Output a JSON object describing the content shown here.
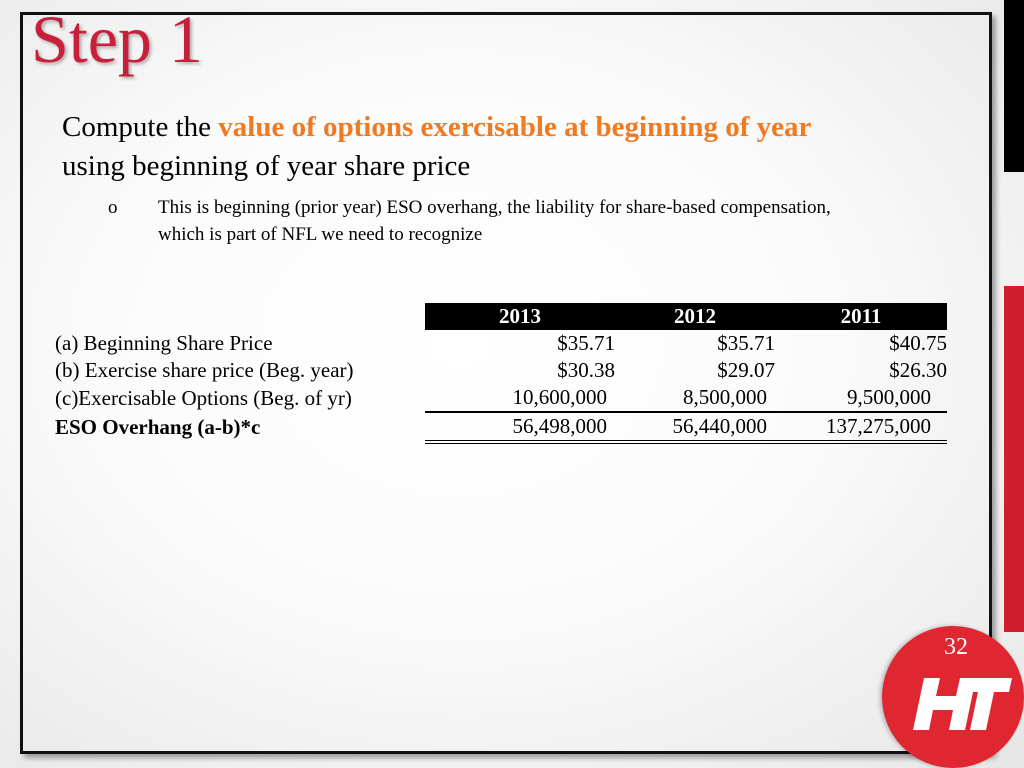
{
  "slide": {
    "title": "Step 1",
    "lead_before": "Compute the ",
    "lead_highlight": "value of options exercisable at beginning of year",
    "lead_after": "using beginning of year share price",
    "bullet_marker": "o",
    "bullet_text": "This is beginning (prior year) ESO overhang, the liability for share-based compensation, which is part of NFL we need to recognize",
    "page_number": "32"
  },
  "table": {
    "years": [
      "2013",
      "2012",
      "2011"
    ],
    "rows": [
      {
        "label": "(a) Beginning Share Price",
        "values": [
          "$35.71",
          "$35.71",
          "$40.75"
        ]
      },
      {
        "label": "(b) Exercise share price (Beg. year)",
        "values": [
          "$30.38",
          "$29.07",
          "$26.30"
        ]
      },
      {
        "label": "(c)Exercisable Options (Beg. of yr)",
        "values": [
          "10,600,000",
          "8,500,000",
          "9,500,000"
        ]
      },
      {
        "label": "ESO Overhang (a-b)*c",
        "values": [
          "56,498,000",
          "56,440,000",
          "137,275,000"
        ]
      }
    ]
  },
  "colors": {
    "title": "#c8203a",
    "highlight": "#ef7a22",
    "accent_red": "#d21d2e",
    "logo_red": "#de2730"
  },
  "icons": {
    "logo": "ht-logo-icon"
  }
}
